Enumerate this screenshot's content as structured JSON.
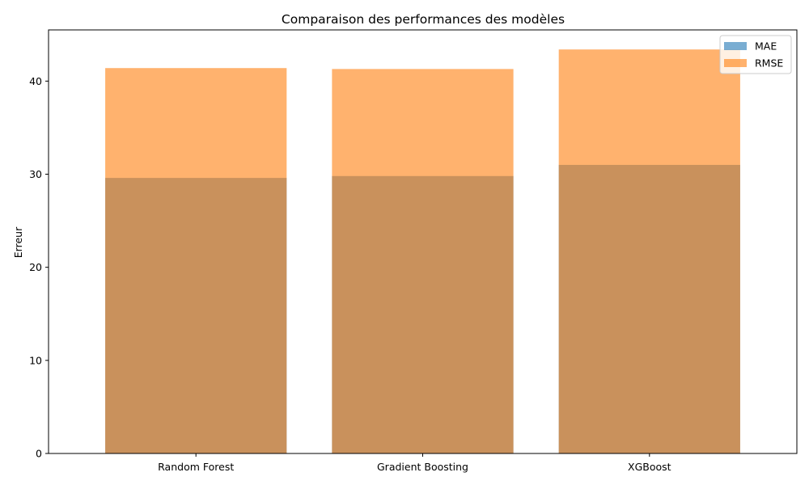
{
  "chart_data": {
    "type": "bar",
    "title": "Comparaison des performances des modèles",
    "xlabel": "",
    "ylabel": "Erreur",
    "categories": [
      "Random Forest",
      "Gradient Boosting",
      "XGBoost"
    ],
    "series": [
      {
        "name": "MAE",
        "values": [
          29.6,
          29.8,
          31.0
        ],
        "color": "#1f77b4",
        "opacity": 0.6
      },
      {
        "name": "RMSE",
        "values": [
          41.4,
          41.3,
          43.4
        ],
        "color": "#ff7f0e",
        "opacity": 0.6
      }
    ],
    "ylim": [
      0,
      45.5
    ],
    "yticks": [
      0,
      10,
      20,
      30,
      40
    ],
    "overlay": true,
    "grid": false,
    "legend_position": "top-right"
  }
}
